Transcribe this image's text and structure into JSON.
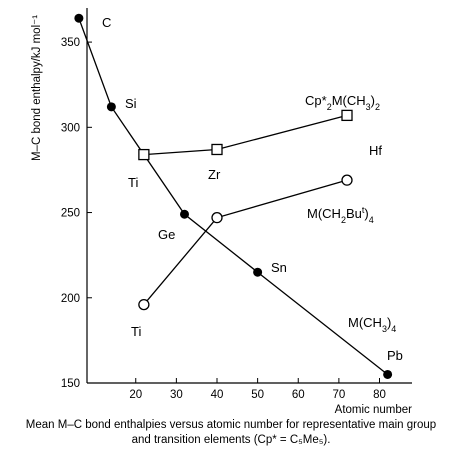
{
  "chart_data": {
    "type": "scatter",
    "xlabel": "Atomic number",
    "ylabel": "M–C bond enthalpy/kJ mol⁻¹",
    "xlim": [
      8,
      88
    ],
    "ylim": [
      150,
      370
    ],
    "x_ticks": [
      20,
      30,
      40,
      50,
      60,
      70,
      80
    ],
    "y_ticks": [
      150,
      200,
      250,
      300,
      350
    ],
    "series": [
      {
        "name": "M(CH3)4",
        "marker": "filled-circle",
        "points": [
          {
            "x": 6,
            "y": 364,
            "label": "C"
          },
          {
            "x": 14,
            "y": 312,
            "label": "Si"
          },
          {
            "x": 32,
            "y": 249,
            "label": "Ge"
          },
          {
            "x": 50,
            "y": 215,
            "label": "Sn"
          },
          {
            "x": 82,
            "y": 155,
            "label": "Pb"
          }
        ]
      },
      {
        "name": "Cp*2M(CH3)2",
        "marker": "open-square",
        "points": [
          {
            "x": 22,
            "y": 284,
            "label": "Ti"
          },
          {
            "x": 40,
            "y": 287,
            "label": "Zr"
          },
          {
            "x": 72,
            "y": 307,
            "label": "Hf"
          }
        ]
      },
      {
        "name": "M(CH2But)4",
        "marker": "open-circle",
        "points": [
          {
            "x": 22,
            "y": 196,
            "label": "Ti"
          },
          {
            "x": 40,
            "y": 247,
            "label": ""
          },
          {
            "x": 72,
            "y": 269,
            "label": ""
          }
        ]
      }
    ]
  },
  "caption": {
    "line1": "Mean M–C bond enthalpies versus atomic number for representative main group",
    "line2": "and transition elements (Cp* = C₅Me₅)."
  }
}
